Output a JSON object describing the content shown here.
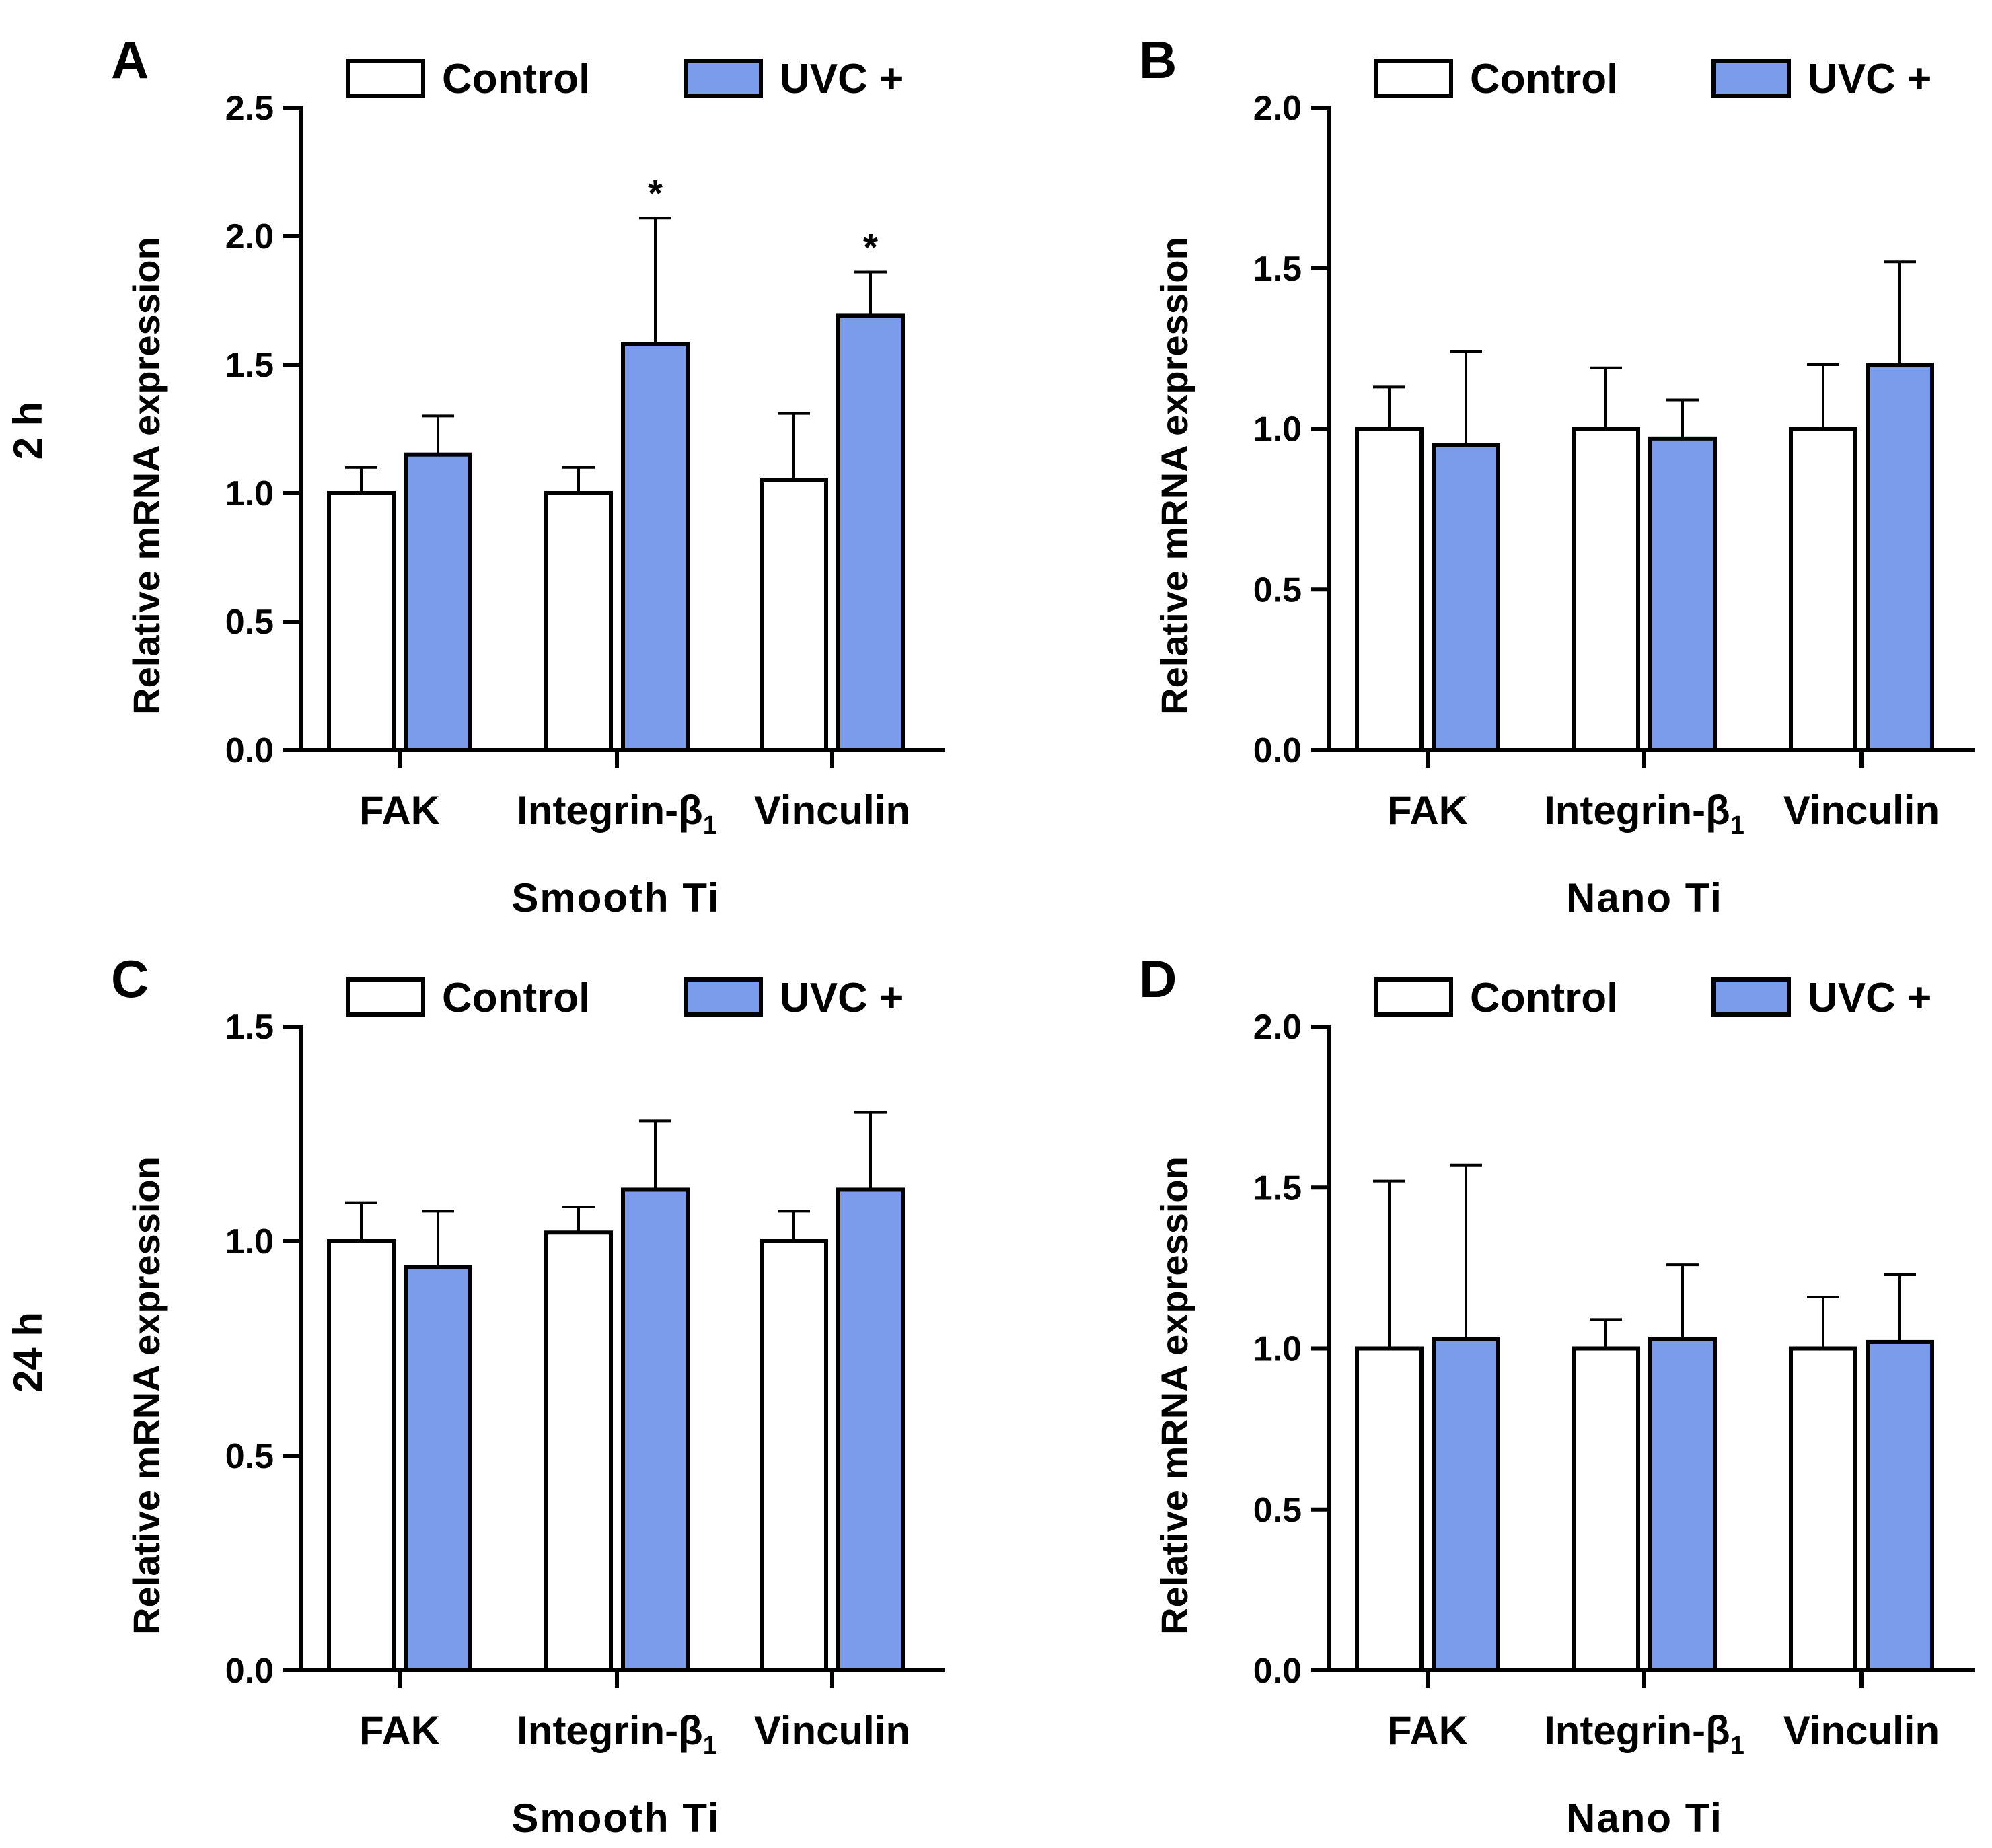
{
  "row_labels": [
    "2 h",
    "24 h"
  ],
  "colors": {
    "control": "#ffffff",
    "uvc": "#7b9ceb",
    "stroke": "#000000"
  },
  "chart_data": [
    {
      "panel": "A",
      "row": 0,
      "col": 0,
      "type": "bar",
      "categories": [
        "FAK",
        "Integrin-β1",
        "Vinculin"
      ],
      "series": [
        {
          "name": "Control",
          "values": [
            1.0,
            1.0,
            1.05
          ],
          "errors": [
            0.1,
            0.1,
            0.26
          ],
          "significance": [
            "",
            "",
            ""
          ]
        },
        {
          "name": "UVC +",
          "values": [
            1.15,
            1.58,
            1.69
          ],
          "errors": [
            0.15,
            0.49,
            0.17
          ],
          "significance": [
            "",
            "*",
            "*"
          ]
        }
      ],
      "xlabel": "Smooth Ti",
      "ylabel": "Relative mRNA expression",
      "ylim": [
        0,
        2.5
      ],
      "yticks": [
        "0.0",
        "0.5",
        "1.0",
        "1.5",
        "2.0",
        "2.5"
      ],
      "legend": "top"
    },
    {
      "panel": "B",
      "row": 0,
      "col": 1,
      "type": "bar",
      "categories": [
        "FAK",
        "Integrin-β1",
        "Vinculin"
      ],
      "series": [
        {
          "name": "Control",
          "values": [
            1.0,
            1.0,
            1.0
          ],
          "errors": [
            0.13,
            0.19,
            0.2
          ],
          "significance": [
            "",
            "",
            ""
          ]
        },
        {
          "name": "UVC +",
          "values": [
            0.95,
            0.97,
            1.2
          ],
          "errors": [
            0.29,
            0.12,
            0.32
          ],
          "significance": [
            "",
            "",
            ""
          ]
        }
      ],
      "xlabel": "Nano Ti",
      "ylabel": "Relative mRNA expression",
      "ylim": [
        0,
        2.0
      ],
      "yticks": [
        "0.0",
        "0.5",
        "1.0",
        "1.5",
        "2.0"
      ],
      "legend": "top"
    },
    {
      "panel": "C",
      "row": 1,
      "col": 0,
      "type": "bar",
      "categories": [
        "FAK",
        "Integrin-β1",
        "Vinculin"
      ],
      "series": [
        {
          "name": "Control",
          "values": [
            1.0,
            1.02,
            1.0
          ],
          "errors": [
            0.09,
            0.06,
            0.07
          ],
          "significance": [
            "",
            "",
            ""
          ]
        },
        {
          "name": "UVC +",
          "values": [
            0.94,
            1.12,
            1.12
          ],
          "errors": [
            0.13,
            0.16,
            0.18
          ],
          "significance": [
            "",
            "",
            ""
          ]
        }
      ],
      "xlabel": "Smooth Ti",
      "ylabel": "Relative mRNA expression",
      "ylim": [
        0,
        1.5
      ],
      "yticks": [
        "0.0",
        "0.5",
        "1.0",
        "1.5"
      ],
      "legend": "top"
    },
    {
      "panel": "D",
      "row": 1,
      "col": 1,
      "type": "bar",
      "categories": [
        "FAK",
        "Integrin-β1",
        "Vinculin"
      ],
      "series": [
        {
          "name": "Control",
          "values": [
            1.0,
            1.0,
            1.0
          ],
          "errors": [
            0.52,
            0.09,
            0.16
          ],
          "significance": [
            "",
            "",
            ""
          ]
        },
        {
          "name": "UVC +",
          "values": [
            1.03,
            1.03,
            1.02
          ],
          "errors": [
            0.54,
            0.23,
            0.21
          ],
          "significance": [
            "",
            "",
            ""
          ]
        }
      ],
      "xlabel": "Nano Ti",
      "ylabel": "Relative mRNA expression",
      "ylim": [
        0,
        2.0
      ],
      "yticks": [
        "0.0",
        "0.5",
        "1.0",
        "1.5",
        "2.0"
      ],
      "legend": "top"
    }
  ]
}
